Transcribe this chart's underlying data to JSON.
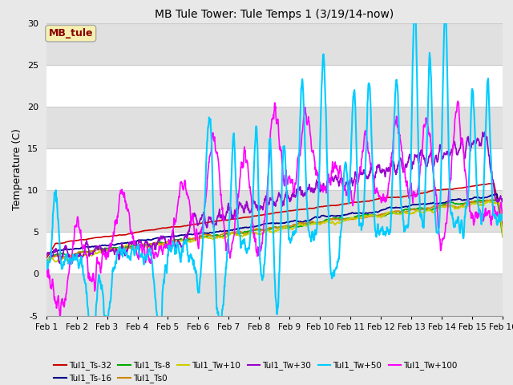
{
  "title": "MB Tule Tower: Tule Temps 1 (3/19/14-now)",
  "ylabel": "Temperature (C)",
  "ylim": [
    -5,
    30
  ],
  "xlim": [
    0,
    15
  ],
  "xtick_labels": [
    "Feb 1",
    "Feb 2",
    "Feb 3",
    "Feb 4",
    "Feb 5",
    "Feb 6",
    "Feb 7",
    "Feb 8",
    "Feb 9",
    "Feb 10",
    "Feb 11",
    "Feb 12",
    "Feb 13",
    "Feb 14",
    "Feb 15",
    "Feb 16"
  ],
  "xtick_positions": [
    0,
    1,
    2,
    3,
    4,
    5,
    6,
    7,
    8,
    9,
    10,
    11,
    12,
    13,
    14,
    15
  ],
  "ytick_positions": [
    -5,
    0,
    5,
    10,
    15,
    20,
    25,
    30
  ],
  "background_color": "#e8e8e8",
  "band_colors": [
    "#ffffff",
    "#e0e0e0"
  ],
  "legend_label": "MB_tule",
  "legend_box_facecolor": "#f5f0b0",
  "legend_box_edgecolor": "#aaaaaa",
  "legend_text_color": "#880000",
  "series": {
    "Tul1_Ts-32": {
      "color": "#cc0000",
      "linewidth": 1.2,
      "zorder": 4
    },
    "Tul1_Ts-16": {
      "color": "#000088",
      "linewidth": 1.2,
      "zorder": 4
    },
    "Tul1_Ts-8": {
      "color": "#00aa00",
      "linewidth": 1.2,
      "zorder": 4
    },
    "Tul1_Ts0": {
      "color": "#cc8800",
      "linewidth": 1.2,
      "zorder": 4
    },
    "Tul1_Tw+10": {
      "color": "#cccc00",
      "linewidth": 1.2,
      "zorder": 4
    },
    "Tul1_Tw+30": {
      "color": "#9900cc",
      "linewidth": 1.2,
      "zorder": 4
    },
    "Tul1_Tw+50": {
      "color": "#00ccff",
      "linewidth": 1.5,
      "zorder": 5
    },
    "Tul1_Tw+100": {
      "color": "#ff00ff",
      "linewidth": 1.2,
      "zorder": 4
    }
  }
}
